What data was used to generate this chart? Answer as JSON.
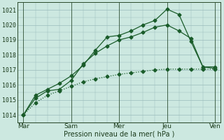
{
  "title": "",
  "xlabel": "Pression niveau de la mer( hPa )",
  "ylabel": "",
  "bg_color": "#cce8e0",
  "grid_color": "#99bbbb",
  "line_color": "#1a5c2a",
  "ylim": [
    1013.5,
    1021.5
  ],
  "yticks": [
    1014,
    1015,
    1016,
    1017,
    1018,
    1019,
    1020,
    1021
  ],
  "day_labels": [
    "Mar",
    "Sam",
    "Mer",
    "Jeu",
    "Ven"
  ],
  "day_positions": [
    0,
    48,
    96,
    144,
    192
  ],
  "xlim": [
    -6,
    198
  ],
  "line1_x": [
    0,
    12,
    24,
    36,
    48,
    60,
    72,
    84,
    96,
    108,
    120,
    132,
    144,
    156,
    168,
    180,
    192
  ],
  "line1_y": [
    1014.0,
    1014.8,
    1015.3,
    1015.6,
    1015.9,
    1016.2,
    1016.4,
    1016.55,
    1016.7,
    1016.8,
    1016.9,
    1017.0,
    1017.05,
    1017.05,
    1017.05,
    1017.05,
    1017.05
  ],
  "line2_x": [
    0,
    12,
    24,
    36,
    48,
    60,
    72,
    84,
    96,
    108,
    120,
    132,
    144,
    156,
    168,
    180,
    192
  ],
  "line2_y": [
    1014.0,
    1015.1,
    1015.6,
    1015.7,
    1016.3,
    1017.4,
    1018.1,
    1018.6,
    1019.0,
    1019.2,
    1019.5,
    1019.85,
    1020.0,
    1019.6,
    1019.1,
    1017.2,
    1017.1
  ],
  "line3_x": [
    0,
    12,
    24,
    36,
    48,
    60,
    72,
    84,
    96,
    108,
    120,
    132,
    144,
    156,
    168,
    180,
    192
  ],
  "line3_y": [
    1014.0,
    1015.3,
    1015.7,
    1016.1,
    1016.6,
    1017.3,
    1018.3,
    1019.2,
    1019.3,
    1019.6,
    1020.0,
    1020.3,
    1021.05,
    1020.7,
    1018.9,
    1017.2,
    1017.2
  ],
  "vline_positions": [
    0,
    48,
    96,
    144,
    192
  ],
  "marker": "D",
  "marker_size": 2.5,
  "linewidth": 0.9
}
